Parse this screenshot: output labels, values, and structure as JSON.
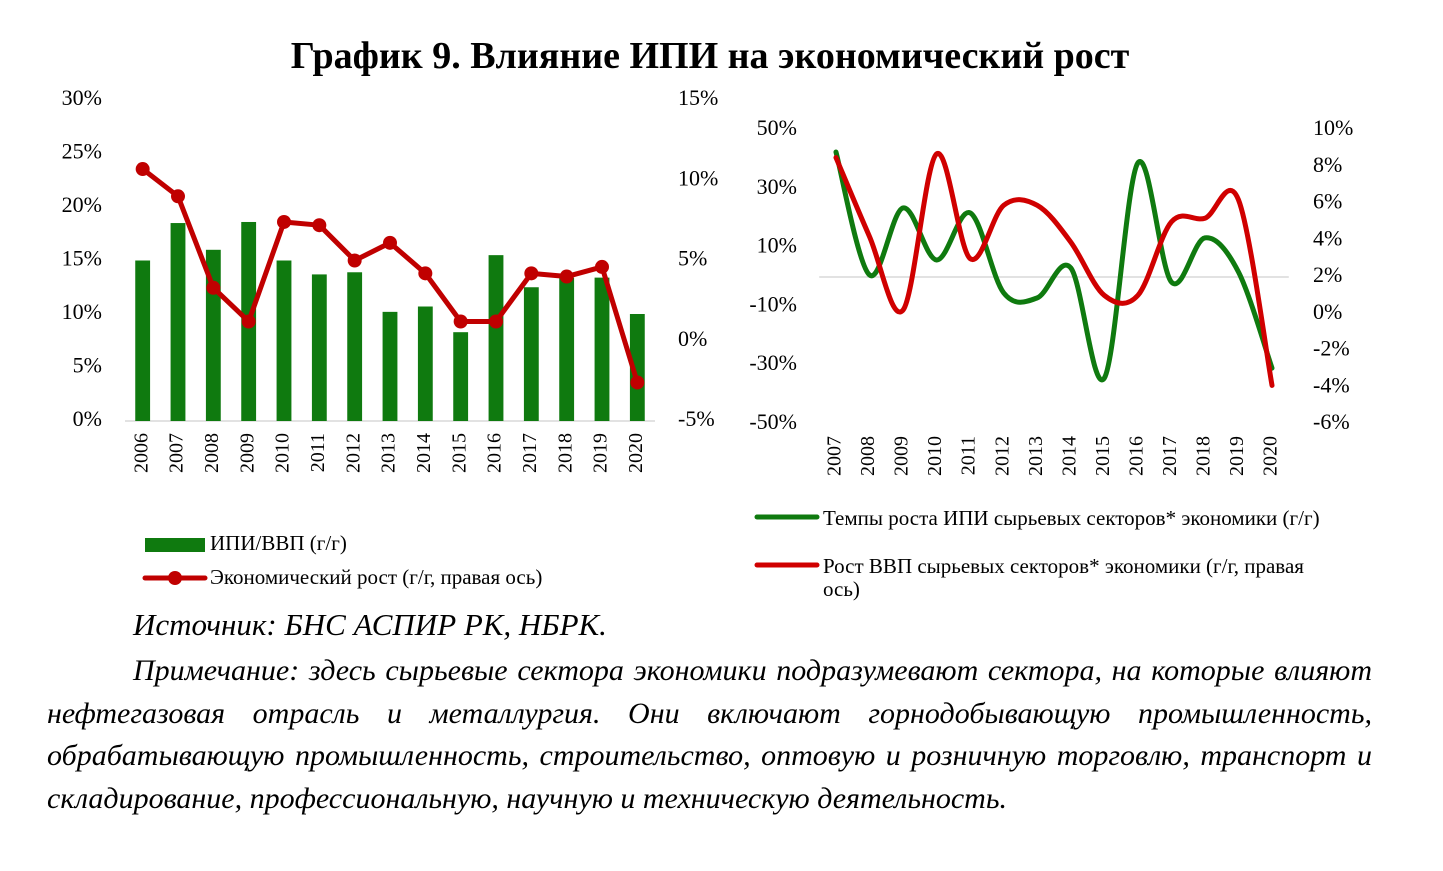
{
  "title": "График 9. Влияние ИПИ на экономический рост",
  "chart_data": [
    {
      "type": "bar",
      "categories": [
        "2006",
        "2007",
        "2008",
        "2009",
        "2010",
        "2011",
        "2012",
        "2013",
        "2014",
        "2015",
        "2016",
        "2017",
        "2018",
        "2019",
        "2020"
      ],
      "series": [
        {
          "name": "ИПИ/ВВП (г/г)",
          "type": "bar",
          "color": "#0f7a0f",
          "values": [
            15,
            18.5,
            16,
            18.6,
            15,
            13.7,
            13.9,
            10.2,
            10.7,
            8.3,
            15.5,
            12.5,
            13.4,
            13.4,
            10
          ]
        },
        {
          "name": "Экономический рост (г/г, правая ось)",
          "type": "line",
          "axis": "y2",
          "color": "#c00000",
          "markers": true,
          "values": [
            10.7,
            9.0,
            3.3,
            1.2,
            7.4,
            7.2,
            5.0,
            6.1,
            4.2,
            1.2,
            1.2,
            4.2,
            4.0,
            4.6,
            -2.6
          ]
        }
      ],
      "ylim": [
        0,
        30
      ],
      "yticks": [
        {
          "value": 0,
          "label": "0%"
        },
        {
          "value": 5,
          "label": "5%"
        },
        {
          "value": 10,
          "label": "10%"
        },
        {
          "value": 15,
          "label": "15%"
        },
        {
          "value": 20,
          "label": "20%"
        },
        {
          "value": 25,
          "label": "25%"
        },
        {
          "value": 30,
          "label": "30%"
        }
      ],
      "y2lim": [
        -5,
        15
      ],
      "y2ticks": [
        {
          "value": -5,
          "label": "-5%"
        },
        {
          "value": 0,
          "label": "0%"
        },
        {
          "value": 5,
          "label": "5%"
        },
        {
          "value": 10,
          "label": "10%"
        },
        {
          "value": 15,
          "label": "15%"
        }
      ],
      "grid": false
    },
    {
      "type": "line",
      "smooth": true,
      "categories": [
        "2007",
        "2008",
        "2009",
        "2010",
        "2011",
        "2012",
        "2013",
        "2014",
        "2015",
        "2016",
        "2017",
        "2018",
        "2019",
        "2020"
      ],
      "series": [
        {
          "name": "Темпы роста ИПИ сырьевых секторов* экономики (г/г)",
          "color": "#0f7a0f",
          "values": [
            42.5,
            0.7,
            23.5,
            5.8,
            21.8,
            -5.4,
            -7.1,
            3.1,
            -34.4,
            38.8,
            -1.7,
            13.3,
            1.7,
            -31
          ]
        },
        {
          "name": "Рост ВВП сырьевых секторов* экономики (г/г, правая ось)",
          "axis": "y2",
          "color": "#d00000",
          "values": [
            8.5,
            4.2,
            0.2,
            8.7,
            3.0,
            5.9,
            5.9,
            3.9,
            1.0,
            1.0,
            5.0,
            5.2,
            6.2,
            -3.9
          ]
        }
      ],
      "ylim": [
        -50,
        50
      ],
      "yticks": [
        {
          "value": -50,
          "label": "-50%"
        },
        {
          "value": -30,
          "label": "-30%"
        },
        {
          "value": -10,
          "label": "-10%"
        },
        {
          "value": 10,
          "label": "10%"
        },
        {
          "value": 30,
          "label": "30%"
        },
        {
          "value": 50,
          "label": "50%"
        }
      ],
      "y2lim": [
        -6,
        10
      ],
      "y2ticks": [
        {
          "value": -6,
          "label": "-6%"
        },
        {
          "value": -4,
          "label": "-4%"
        },
        {
          "value": -2,
          "label": "-2%"
        },
        {
          "value": 0,
          "label": "0%"
        },
        {
          "value": 2,
          "label": "2%"
        },
        {
          "value": 4,
          "label": "4%"
        },
        {
          "value": 6,
          "label": "6%"
        },
        {
          "value": 8,
          "label": "8%"
        },
        {
          "value": 10,
          "label": "10%"
        }
      ],
      "grid": false
    }
  ],
  "source": "Источник: БНС АСПИР РК, НБРК.",
  "note": "Примечание: здесь сырьевые сектора экономики подразумевают сектора, на которые влияют нефтегазовая отрасль и металлургия. Они включают горнодобывающую промышленность, обрабатывающую промышленность, строительство, оптовую и розничную торговлю, транспорт и складирование, профессиональную, научную и техническую деятельность."
}
